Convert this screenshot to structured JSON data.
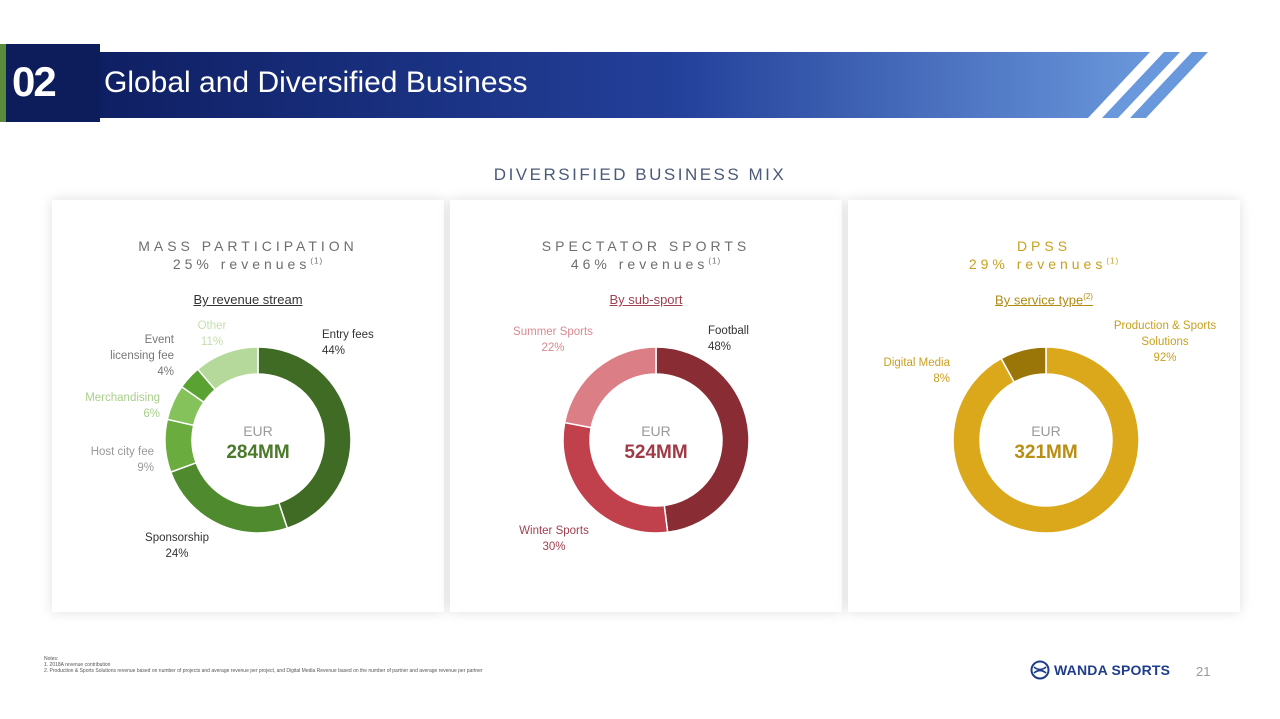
{
  "header": {
    "section_number": "02",
    "title": "Global and Diversified Business"
  },
  "mix_title": "DIVERSIFIED BUSINESS MIX",
  "colors": {
    "header_dark": "#12236a",
    "header_light": "#5f8fd6",
    "accent_green": "#4a7a2a"
  },
  "panels": [
    {
      "title": "MASS PARTICIPATION",
      "subtitle": "25% revenues",
      "subtitle_note": "(1)",
      "breakdown": "By revenue stream",
      "breakdown_note": "",
      "currency": "EUR",
      "total": "284MM"
    },
    {
      "title": "SPECTATOR SPORTS",
      "subtitle": "46% revenues",
      "subtitle_note": "(1)",
      "breakdown": "By sub-sport",
      "breakdown_note": "",
      "currency": "EUR",
      "total": "524MM"
    },
    {
      "title": "DPSS",
      "subtitle": "29% revenues",
      "subtitle_note": "(1)",
      "breakdown": "By service type",
      "breakdown_note": "(2)",
      "currency": "EUR",
      "total": "321MM"
    }
  ],
  "chart_data": [
    {
      "type": "pie",
      "title": "MASS PARTICIPATION",
      "total": "EUR 284MM",
      "categories": [
        "Entry fees",
        "Sponsorship",
        "Host city fee",
        "Merchandising",
        "Event licensing fee",
        "Other"
      ],
      "values": [
        44,
        24,
        9,
        6,
        4,
        11
      ],
      "value_labels": [
        "44%",
        "24%",
        "9%",
        "6%",
        "4%",
        "11%"
      ],
      "colors": [
        "#3f6b25",
        "#4f8a2e",
        "#6aac3d",
        "#86c25c",
        "#5aa232",
        "#b5d99a"
      ],
      "label_colors": [
        "#333333",
        "#333333",
        "#999999",
        "#a8cf8a",
        "#777777",
        "#c4e0ae"
      ]
    },
    {
      "type": "pie",
      "title": "SPECTATOR SPORTS",
      "total": "EUR 524MM",
      "categories": [
        "Football",
        "Winter Sports",
        "Summer Sports"
      ],
      "values": [
        48,
        30,
        22
      ],
      "value_labels": [
        "48%",
        "30%",
        "22%"
      ],
      "colors": [
        "#8a2c33",
        "#c0404c",
        "#dc7e86"
      ],
      "label_colors": [
        "#333333",
        "#a04050",
        "#d88a92"
      ]
    },
    {
      "type": "pie",
      "title": "DPSS",
      "total": "EUR 321MM",
      "categories": [
        "Production & Sports Solutions",
        "Digital Media"
      ],
      "values": [
        92,
        8
      ],
      "value_labels": [
        "92%",
        "8%"
      ],
      "colors": [
        "#dba81c",
        "#9a7608"
      ],
      "label_colors": [
        "#c9a01e",
        "#c9a01e"
      ]
    }
  ],
  "notes": {
    "heading": "Notes:",
    "lines": [
      "1.   2018A revenue contribution",
      "2.   Production & Sports Solutions revenue based on number of projects and average revenue per project, and Digital Media Revenue based on the number of partner and average revenue per partner"
    ]
  },
  "brand": "WANDA SPORTS",
  "page_number": "21"
}
